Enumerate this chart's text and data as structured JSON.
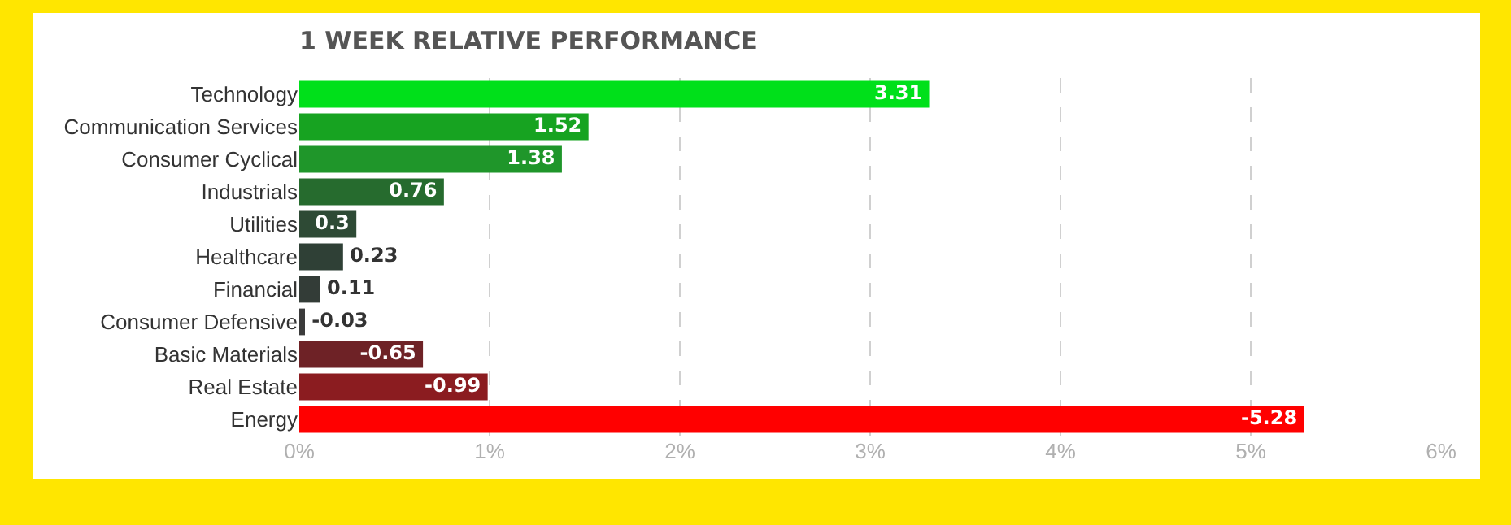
{
  "chart_data": {
    "type": "bar",
    "orientation": "horizontal",
    "title": "1 WEEK RELATIVE PERFORMANCE",
    "categories": [
      "Technology",
      "Communication Services",
      "Consumer Cyclical",
      "Industrials",
      "Utilities",
      "Healthcare",
      "Financial",
      "Consumer Defensive",
      "Basic Materials",
      "Real Estate",
      "Energy"
    ],
    "values": [
      3.31,
      1.52,
      1.38,
      0.76,
      0.3,
      0.23,
      0.11,
      -0.03,
      -0.65,
      -0.99,
      -5.28
    ],
    "base": [
      0,
      0,
      0,
      0,
      0,
      0,
      0,
      0.03,
      0.65,
      0.99,
      5.28
    ],
    "colors": [
      "#00e01a",
      "#17a321",
      "#1f962a",
      "#266b2e",
      "#2e4a35",
      "#2f4036",
      "#333c37",
      "#3b3b3b",
      "#6e2226",
      "#8b1c20",
      "#ff0000"
    ],
    "xlim": [
      0,
      6
    ],
    "xticks": [
      {
        "value": 0,
        "label": "0%"
      },
      {
        "value": 1,
        "label": "1%"
      },
      {
        "value": 2,
        "label": "2%"
      },
      {
        "value": 3,
        "label": "3%"
      },
      {
        "value": 4,
        "label": "4%"
      },
      {
        "value": 5,
        "label": "5%"
      },
      {
        "value": 6,
        "label": "6%"
      }
    ],
    "grid": "x",
    "data_labels": true
  }
}
